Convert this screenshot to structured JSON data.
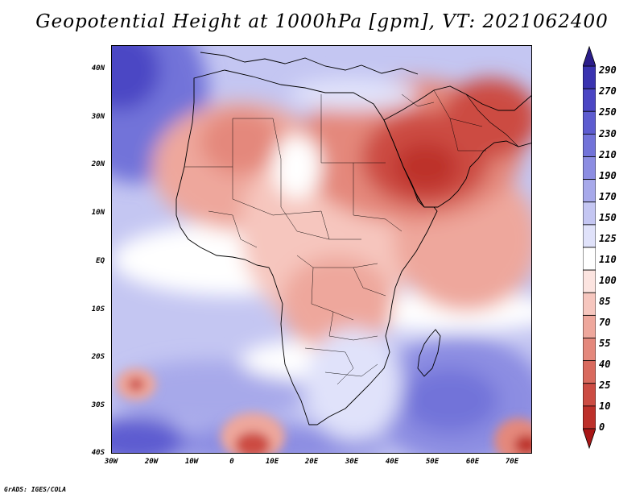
{
  "title": "Geopotential Height at 1000hPa [gpm], VT: 2021062400",
  "credit": "GrADS: IGES/COLA",
  "map": {
    "lon_range": [
      -30,
      75
    ],
    "lat_range": [
      -40,
      45
    ],
    "lat_labels": [
      "40N",
      "30N",
      "20N",
      "10N",
      "EQ",
      "10S",
      "20S",
      "30S",
      "40S"
    ],
    "lon_labels": [
      "30W",
      "20W",
      "10W",
      "0",
      "10E",
      "20E",
      "30E",
      "40E",
      "50E",
      "60E",
      "70E"
    ],
    "features": [
      "Africa",
      "Arabian Peninsula",
      "Madagascar",
      "Atlantic Ocean",
      "Indian Ocean",
      "Mediterranean Sea"
    ]
  },
  "colorbar": {
    "levels": [
      "290",
      "270",
      "250",
      "230",
      "210",
      "190",
      "170",
      "150",
      "125",
      "110",
      "100",
      "85",
      "70",
      "55",
      "40",
      "25",
      "10",
      "0"
    ],
    "colors": [
      "#2b1d8a",
      "#3a33b0",
      "#4b46c4",
      "#5d5cd0",
      "#7273d9",
      "#8c8de2",
      "#a7a9ea",
      "#c4c6f2",
      "#e0e2fa",
      "#ffffff",
      "#fce4e0",
      "#f6c6be",
      "#eea79c",
      "#e4887c",
      "#d96a5e",
      "#cc4c43",
      "#bd302a",
      "#a81616"
    ]
  }
}
